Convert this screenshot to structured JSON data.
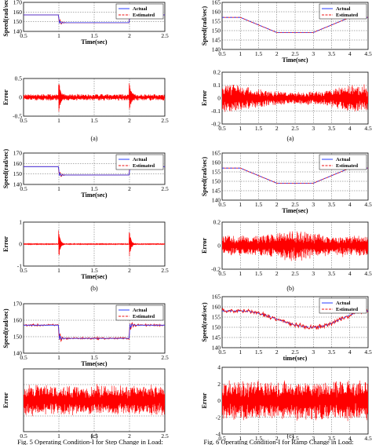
{
  "colors": {
    "actual": "#2a3cff",
    "estimated": "#ee1111",
    "error": "#ff0000",
    "grid": "#333333"
  },
  "labels": {
    "speed": "Speed(rad/sec)",
    "time": "Time(sec)",
    "time_lower": "time(sec)",
    "error": "Error",
    "legend_actual": "Actual",
    "legend_estimated": "Estimated"
  },
  "captions": {
    "left": "Fig. 5 Operating Condition-I for Step Change in Load:",
    "right": "Fig. 6 Operating Condition-I for Ramp Change in Load:"
  },
  "chart_data": [
    {
      "id": "5a-speed",
      "type": "line",
      "subfigure": "(a)",
      "ylabel": "Speed(rad/sec)",
      "xlabel": "Time(sec)",
      "xlim": [
        0.5,
        2.5
      ],
      "ylim": [
        140,
        170
      ],
      "xticks": [
        0.5,
        1,
        1.5,
        2,
        2.5
      ],
      "yticks": [
        140,
        150,
        160,
        170
      ],
      "grid": true,
      "legend": "top-right",
      "series": [
        {
          "name": "Actual",
          "x": [
            0.5,
            1.0,
            1.0,
            2.0,
            2.0,
            2.5
          ],
          "y": [
            157,
            157,
            149,
            149,
            157,
            157
          ]
        },
        {
          "name": "Estimated",
          "x": [
            0.5,
            1.0,
            1.0,
            2.0,
            2.0,
            2.5
          ],
          "y": [
            157,
            157,
            149,
            149,
            157,
            157
          ]
        }
      ]
    },
    {
      "id": "5a-error",
      "type": "line",
      "ylabel": "Error",
      "xlim": [
        0.5,
        2.5
      ],
      "ylim": [
        -0.5,
        0.5
      ],
      "xticks": [
        0.5,
        1,
        1.5,
        2,
        2.5
      ],
      "yticks": [
        -0.5,
        0,
        0.5
      ],
      "grid": true,
      "series": [
        {
          "x": [
            0.5,
            2.5
          ],
          "y": [
            0,
            0
          ],
          "noise_amplitude": 0.08,
          "transients_at": [
            1,
            2
          ],
          "transient_peak": 0.4
        }
      ]
    },
    {
      "id": "5b-speed",
      "type": "line",
      "subfigure": "(b)",
      "ylabel": "Speed(rad/sec)",
      "xlabel": "Time(sec)",
      "xlim": [
        0.5,
        2.5
      ],
      "ylim": [
        140,
        170
      ],
      "xticks": [
        0.5,
        1,
        1.5,
        2,
        2.5
      ],
      "yticks": [
        140,
        150,
        160,
        170
      ],
      "grid": true,
      "legend": "top-right",
      "series": [
        {
          "name": "Actual",
          "x": [
            0.5,
            1.0,
            1.0,
            2.0,
            2.0,
            2.5
          ],
          "y": [
            157,
            157,
            149,
            149,
            157,
            157
          ]
        },
        {
          "name": "Estimated",
          "x": [
            0.5,
            1.0,
            1.0,
            2.0,
            2.0,
            2.5
          ],
          "y": [
            157,
            157,
            149,
            149,
            157,
            157
          ]
        }
      ]
    },
    {
      "id": "5b-error",
      "type": "line",
      "ylabel": "Error",
      "xlabel": "Time(sec)",
      "xlim": [
        0.5,
        2.5
      ],
      "ylim": [
        -1,
        1
      ],
      "xticks": [
        0.5,
        1,
        1.5,
        2,
        2.5
      ],
      "yticks": [
        -1,
        0,
        1
      ],
      "grid": true,
      "series": [
        {
          "x": [
            0.5,
            2.5
          ],
          "y": [
            0,
            0
          ],
          "noise_amplitude": 0.02,
          "transients_at": [
            1,
            2
          ],
          "transient_peak": 0.75
        }
      ]
    },
    {
      "id": "5c-speed",
      "type": "line",
      "subfigure": "(c)",
      "ylabel": "Speed(rad/sec)",
      "xlabel": "Time(sec)",
      "xlim": [
        0.5,
        2.5
      ],
      "ylim": [
        140,
        170
      ],
      "xticks": [
        0.5,
        1,
        1.5,
        2,
        2.5
      ],
      "yticks": [
        140,
        150,
        160,
        170
      ],
      "grid": true,
      "legend": "top-right",
      "series": [
        {
          "name": "Actual",
          "x": [
            0.5,
            1.0,
            1.0,
            2.0,
            2.0,
            2.5
          ],
          "y": [
            157,
            157,
            149,
            149,
            157,
            157
          ]
        },
        {
          "name": "Estimated",
          "x": [
            0.5,
            1.0,
            1.0,
            2.0,
            2.0,
            2.5
          ],
          "y": [
            157,
            157,
            149,
            149,
            157,
            157
          ],
          "noise_amplitude": 0.8
        }
      ]
    },
    {
      "id": "5c-error",
      "type": "line",
      "ylabel": "Error",
      "xlim": [
        0.5,
        2.5
      ],
      "ylim": [
        -4,
        4
      ],
      "xticks": [
        0.5,
        1,
        1.5,
        2,
        2.5
      ],
      "yticks": [],
      "grid": true,
      "series": [
        {
          "x": [
            0.5,
            2.5
          ],
          "y": [
            0,
            0
          ],
          "noise_amplitude": 1.8
        }
      ]
    },
    {
      "id": "6a-speed",
      "type": "line",
      "subfigure": "(a)",
      "ylabel": "Speed(rad/sec)",
      "xlabel": "Time(sec)",
      "xlim": [
        0.5,
        4.5
      ],
      "ylim": [
        140,
        165
      ],
      "xticks": [
        0.5,
        1,
        1.5,
        2,
        2.5,
        3,
        3.5,
        4,
        4.5
      ],
      "yticks": [
        140,
        145,
        150,
        155,
        160,
        165
      ],
      "grid": true,
      "legend": "top-right",
      "series": [
        {
          "name": "Actual",
          "x": [
            0.5,
            1.0,
            2.0,
            3.0,
            4.0,
            4.5
          ],
          "y": [
            157,
            157,
            149,
            149,
            157,
            157
          ]
        },
        {
          "name": "Estimated",
          "x": [
            0.5,
            1.0,
            2.0,
            3.0,
            4.0,
            4.5
          ],
          "y": [
            157,
            157,
            149,
            149,
            157,
            157
          ]
        }
      ]
    },
    {
      "id": "6a-error",
      "type": "line",
      "ylabel": "Error",
      "xlim": [
        0.5,
        4.5
      ],
      "ylim": [
        -0.2,
        0.2
      ],
      "xticks": [
        0.5,
        1,
        1.5,
        2,
        2.5,
        3,
        3.5,
        4,
        4.5
      ],
      "yticks": [
        -0.2,
        -0.1,
        0,
        0.1,
        0.2
      ],
      "grid": true,
      "series": [
        {
          "x": [
            0.5,
            4.5
          ],
          "y": [
            0,
            0
          ],
          "noise_amplitude": 0.1,
          "envelope": "shrinks between 1 and 4 s"
        }
      ]
    },
    {
      "id": "6b-speed",
      "type": "line",
      "subfigure": "(b)",
      "ylabel": "Speed(rad/sec)",
      "xlabel": "Time(sec)",
      "xlim": [
        0.5,
        4.5
      ],
      "ylim": [
        140,
        165
      ],
      "xticks": [
        0.5,
        1,
        1.5,
        2,
        2.5,
        3,
        3.5,
        4,
        4.5
      ],
      "yticks": [
        140,
        145,
        150,
        155,
        160,
        165
      ],
      "grid": true,
      "legend": "top-right",
      "series": [
        {
          "name": "Actual",
          "x": [
            0.5,
            1.0,
            2.0,
            3.0,
            4.0,
            4.5
          ],
          "y": [
            157,
            157,
            149,
            149,
            157,
            157
          ]
        },
        {
          "name": "Estimated",
          "x": [
            0.5,
            1.0,
            2.0,
            3.0,
            4.0,
            4.5
          ],
          "y": [
            157,
            157,
            149,
            149,
            157,
            157
          ]
        }
      ]
    },
    {
      "id": "6b-error",
      "type": "line",
      "ylabel": "Error",
      "xlim": [
        0.5,
        4.5
      ],
      "ylim": [
        -0.2,
        0.2
      ],
      "xticks": [
        0.5,
        1,
        1.5,
        2,
        2.5,
        3,
        3.5,
        4,
        4.5
      ],
      "yticks": [
        -0.2,
        0,
        0.2
      ],
      "grid": true,
      "series": [
        {
          "x": [
            0.5,
            4.5
          ],
          "y": [
            0,
            0
          ],
          "noise_amplitude": 0.08,
          "envelope": "grows between 1.5 and 3.5 s"
        }
      ]
    },
    {
      "id": "6c-speed",
      "type": "line",
      "subfigure": "(c)",
      "ylabel": "Speed(rad/sec)",
      "xlabel": "time(sec)",
      "xlim": [
        0.5,
        4.5
      ],
      "ylim": [
        140,
        165
      ],
      "xticks": [
        0.5,
        1,
        1.5,
        2,
        2.5,
        3,
        3.5,
        4,
        4.5
      ],
      "yticks": [
        140,
        145,
        150,
        155,
        160,
        165
      ],
      "grid": true,
      "legend": "top-right",
      "series": [
        {
          "name": "Actual",
          "x": [
            0.5,
            1.0,
            3.0,
            4.5
          ],
          "y": [
            158,
            158,
            150,
            158
          ],
          "shape": "smooth"
        },
        {
          "name": "Estimated",
          "x": [
            0.5,
            1.0,
            3.0,
            4.5
          ],
          "y": [
            158,
            158,
            150,
            158
          ],
          "shape": "smooth",
          "noise_amplitude": 1.5
        }
      ]
    },
    {
      "id": "6c-error",
      "type": "line",
      "ylabel": "Error",
      "xlim": [
        0.5,
        4.5
      ],
      "ylim": [
        -4,
        4
      ],
      "xticks": [
        0.5,
        1,
        1.5,
        2,
        2.5,
        3,
        3.5,
        4,
        4.5
      ],
      "yticks": [
        -4,
        -2,
        0,
        2,
        4
      ],
      "grid": true,
      "series": [
        {
          "x": [
            0.5,
            4.5
          ],
          "y": [
            0,
            0
          ],
          "noise_amplitude": 2.2
        }
      ]
    }
  ]
}
